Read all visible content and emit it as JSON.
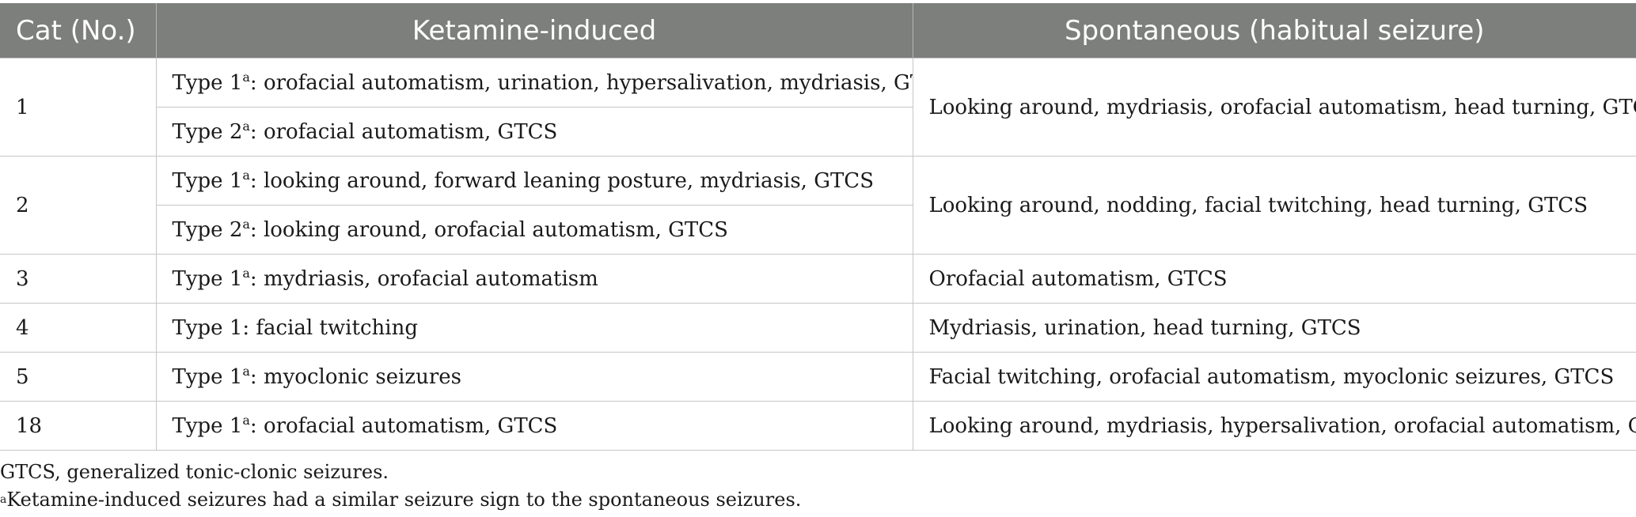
{
  "table": {
    "headers": [
      "Cat (No.)",
      "Ketamine-induced",
      "Spontaneous (habitual seizure)"
    ],
    "groups": [
      {
        "cat": "1",
        "spontaneous": "Looking around, mydriasis, orofacial automatism, head turning, GTCS",
        "ketamine": [
          {
            "type": "Type 1",
            "sup": "a",
            "signs": ": orofacial automatism, urination, hypersalivation, mydriasis, GTCS"
          },
          {
            "type": "Type 2",
            "sup": "a",
            "signs": ": orofacial automatism, GTCS"
          }
        ]
      },
      {
        "cat": "2",
        "spontaneous": "Looking around, nodding, facial twitching, head turning, GTCS",
        "ketamine": [
          {
            "type": "Type 1",
            "sup": "a",
            "signs": ": looking around, forward leaning posture, mydriasis, GTCS"
          },
          {
            "type": "Type 2",
            "sup": "a",
            "signs": ": looking around, orofacial automatism, GTCS"
          }
        ]
      },
      {
        "cat": "3",
        "spontaneous": "Orofacial automatism, GTCS",
        "ketamine": [
          {
            "type": "Type 1",
            "sup": "a",
            "signs": ": mydriasis, orofacial automatism"
          }
        ]
      },
      {
        "cat": "4",
        "spontaneous": "Mydriasis, urination, head turning, GTCS",
        "ketamine": [
          {
            "type": "Type 1",
            "sup": "",
            "signs": ": facial twitching"
          }
        ]
      },
      {
        "cat": "5",
        "spontaneous": "Facial twitching, orofacial automatism, myoclonic seizures, GTCS",
        "ketamine": [
          {
            "type": "Type 1",
            "sup": "a",
            "signs": ": myoclonic seizures"
          }
        ]
      },
      {
        "cat": "18",
        "spontaneous": "Looking around, mydriasis, hypersalivation, orofacial automatism, GTCS",
        "ketamine": [
          {
            "type": "Type 1",
            "sup": "a",
            "signs": ": orofacial automatism, GTCS"
          }
        ]
      }
    ]
  },
  "footnotes": {
    "abbreviation": "GTCS, generalized tonic-clonic seizures.",
    "note_marker": "a",
    "note_text": "Ketamine-induced seizures had a similar seizure sign to the spontaneous seizures."
  },
  "colors": {
    "header_bg": "#7d7f7c",
    "header_text": "#ffffff",
    "grid": "#c6c6c6"
  }
}
